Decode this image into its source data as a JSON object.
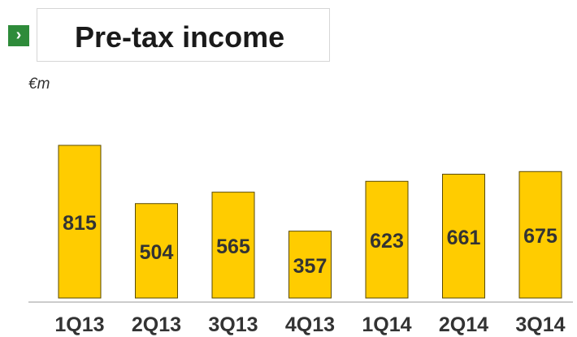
{
  "header": {
    "arrow_glyph": "›",
    "title": "Pre-tax income"
  },
  "chart_data": {
    "type": "bar",
    "title": "Pre-tax income",
    "ylabel": "€m",
    "xlabel": "",
    "categories": [
      "1Q13",
      "2Q13",
      "3Q13",
      "4Q13",
      "1Q14",
      "2Q14",
      "3Q14"
    ],
    "values": [
      815,
      504,
      565,
      357,
      623,
      661,
      675
    ],
    "ylim": [
      0,
      1000
    ],
    "grid": false,
    "legend": "none",
    "colors": {
      "bar_fill": "#ffcc00",
      "bar_stroke": "#5a4a00",
      "axis": "#cccccc",
      "label_text": "#333333"
    }
  }
}
